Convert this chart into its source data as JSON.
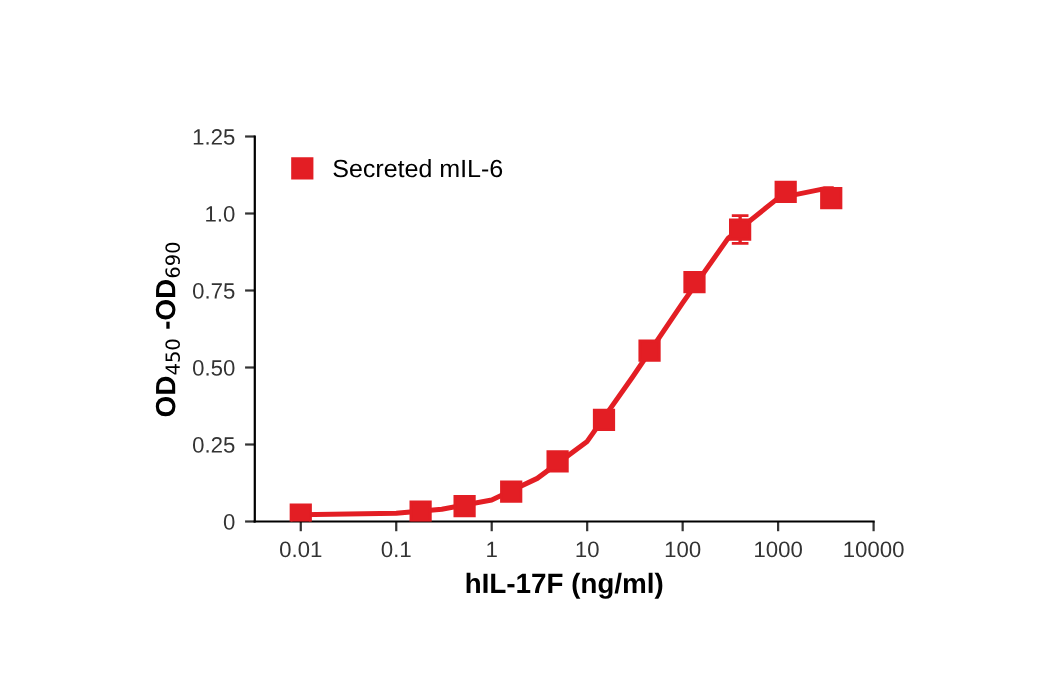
{
  "chart_data": {
    "type": "line",
    "xlabel": "hIL-17F (ng/ml)",
    "ylabel": "OD$_{450}$ -OD$_{690}$",
    "log": "x",
    "xlim": [
      0.0033,
      10000
    ],
    "xticks": [
      0.01,
      0.1,
      1,
      10,
      100,
      1000,
      10000
    ],
    "ylim": [
      0,
      1.25
    ],
    "yticks": [
      {
        "value": 0,
        "label": "0"
      },
      0.25,
      {
        "value": 0.5,
        "label": "0.50"
      },
      0.75,
      {
        "value": 1.0,
        "label": "1.0"
      },
      1.25
    ],
    "grid": false,
    "legend": "top left",
    "series": [
      {
        "name": "Secreted mIL-6",
        "type": "scatter",
        "marker": "square",
        "color": "#e31e24",
        "x": [
          0.01,
          0.18,
          0.52,
          1.6,
          4.9,
          15,
          45,
          133,
          400,
          1200,
          3600
        ],
        "values": [
          0.022,
          0.032,
          0.05,
          0.097,
          0.195,
          0.33,
          0.555,
          0.777,
          0.948,
          1.07,
          1.05
        ],
        "errors": [
          null,
          null,
          null,
          null,
          null,
          null,
          null,
          null,
          0.045,
          null,
          null
        ]
      },
      {
        "color": "#e31e24",
        "x": [
          0.01,
          0.1,
          0.3,
          1,
          3,
          10,
          30,
          100,
          300,
          1000,
          3000,
          3600
        ],
        "values": [
          0.022,
          0.027,
          0.04,
          0.07,
          0.14,
          0.26,
          0.47,
          0.71,
          0.92,
          1.05,
          1.08,
          1.08
        ]
      }
    ]
  }
}
